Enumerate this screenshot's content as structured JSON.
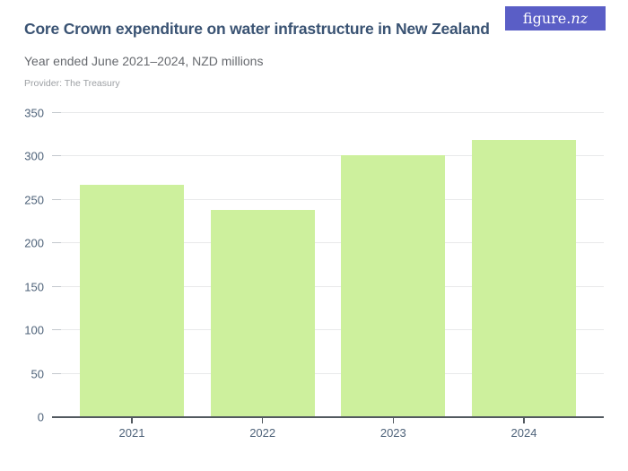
{
  "header": {
    "title": "Core Crown expenditure on water infrastructure in New Zealand",
    "subtitle": "Year ended June 2021–2024, NZD millions",
    "provider": "Provider: The Treasury"
  },
  "logo": {
    "text": "figure.",
    "suffix": "nz"
  },
  "colors": {
    "bar": "#cdf09d",
    "title": "#3a5373",
    "subtitle": "#66696e",
    "provider": "#9da0a4",
    "axis_line": "#52595f",
    "gridline": "#e8e9ea",
    "y_tick": "#c3c8cd",
    "axis_label": "#4f637a",
    "logo_bg": "#5a5ec6",
    "logo_text": "#ffffff",
    "background": "#ffffff"
  },
  "chart_data": {
    "type": "bar",
    "categories": [
      "2021",
      "2022",
      "2023",
      "2024"
    ],
    "values": [
      267,
      239,
      302,
      319
    ],
    "title": "Core Crown expenditure on water infrastructure in New Zealand",
    "subtitle": "Year ended June 2021–2024, NZD millions",
    "xlabel": "",
    "ylabel": "",
    "ylim": [
      0,
      350
    ],
    "ytick_step": 50,
    "yticks": [
      0,
      50,
      100,
      150,
      200,
      250,
      300,
      350
    ],
    "grid": true,
    "legend": false,
    "bar_color": "#cdf09d",
    "units": "NZD millions"
  }
}
